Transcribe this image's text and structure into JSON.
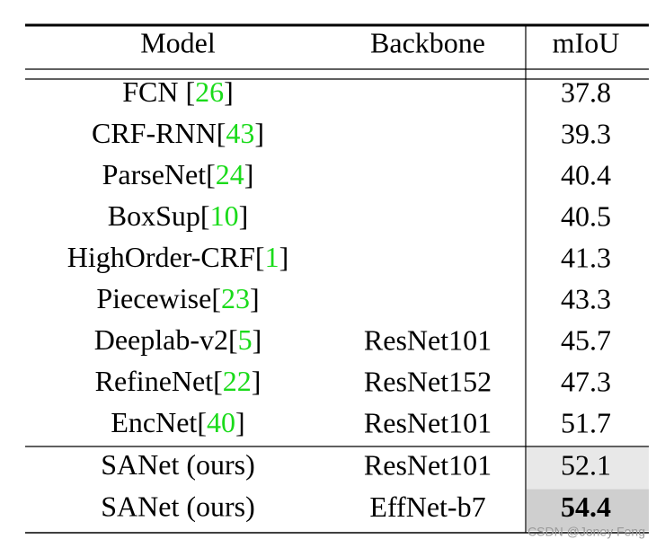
{
  "table": {
    "header": [
      "Model",
      "Backbone",
      "mIoU"
    ],
    "rows": [
      {
        "model": [
          "FCN [",
          "26",
          "]"
        ],
        "miou": 37.8
      },
      {
        "model": [
          "CRF-RNN[",
          "43",
          "]"
        ],
        "miou": 39.3
      },
      {
        "model": [
          "ParseNet[",
          "24",
          "]"
        ],
        "miou": 40.4
      },
      {
        "model": [
          "BoxSup[",
          "10",
          "]"
        ],
        "miou": 40.5
      },
      {
        "model": [
          "HighOrder-CRF[",
          "1",
          "]"
        ],
        "miou": 41.3
      },
      {
        "model": [
          "Piecewise[",
          "23",
          "]"
        ],
        "miou": 43.3
      },
      {
        "model": [
          "Deeplab-v2[",
          "5",
          "]"
        ],
        "backbone": "ResNet101",
        "miou": 45.7
      },
      {
        "model": [
          "RefineNet[",
          "22",
          "]"
        ],
        "backbone": "ResNet152",
        "miou": 47.3
      },
      {
        "model": [
          "EncNet[",
          "40",
          "]"
        ],
        "backbone": "ResNet101",
        "miou": 51.7
      },
      {
        "model": [
          "SANet (ours)"
        ],
        "backbone": "ResNet101",
        "miou": 52.1,
        "highlight": "#e8e8e8"
      },
      {
        "model": [
          "SANet (ours)"
        ],
        "backbone": "EffNet-b7",
        "miou": 54.4,
        "highlight": "#cfcfcf",
        "bold": true
      }
    ]
  },
  "watermark": "CSDN @Joney Feng"
}
